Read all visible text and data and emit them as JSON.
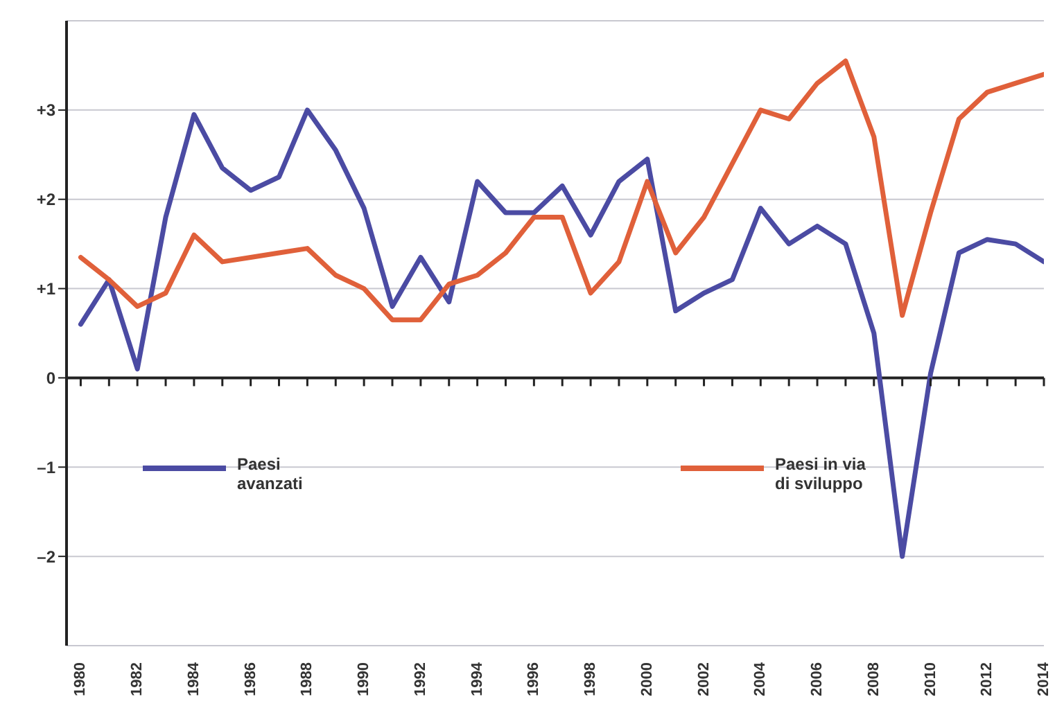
{
  "chart_data": {
    "type": "line",
    "x": [
      1980,
      1981,
      1982,
      1983,
      1984,
      1985,
      1986,
      1987,
      1988,
      1989,
      1990,
      1991,
      1992,
      1993,
      1994,
      1995,
      1996,
      1997,
      1998,
      1999,
      2000,
      2001,
      2002,
      2003,
      2004,
      2005,
      2006,
      2007,
      2008,
      2009,
      2010,
      2011,
      2012,
      2013,
      2014
    ],
    "series": [
      {
        "name": "Paesi avanzati",
        "color": "#4b4ba3",
        "values": [
          0.6,
          1.1,
          0.1,
          1.8,
          2.95,
          2.35,
          2.1,
          2.25,
          3.0,
          2.55,
          1.9,
          0.8,
          1.35,
          0.85,
          2.2,
          1.85,
          1.85,
          2.15,
          1.6,
          2.2,
          2.45,
          0.75,
          0.95,
          1.1,
          1.9,
          1.5,
          1.7,
          1.5,
          0.5,
          -2.0,
          0.05,
          1.4,
          1.55,
          1.5,
          1.3
        ]
      },
      {
        "name": "Paesi in via di sviluppo",
        "color": "#e0603a",
        "values": [
          1.35,
          1.1,
          0.8,
          0.95,
          1.6,
          1.3,
          1.35,
          1.4,
          1.45,
          1.15,
          1.0,
          0.65,
          0.65,
          1.05,
          1.15,
          1.4,
          1.8,
          1.8,
          0.95,
          1.3,
          2.2,
          1.4,
          1.8,
          2.4,
          3.0,
          2.9,
          3.3,
          3.55,
          2.7,
          0.7,
          1.85,
          2.9,
          3.2,
          3.3,
          3.4
        ]
      }
    ],
    "xlim": [
      1979.5,
      2014
    ],
    "xticks": [
      1980,
      {
        "value": 1981,
        "label": null
      },
      1982,
      {
        "value": 1983,
        "label": null
      },
      1984,
      {
        "value": 1985,
        "label": null
      },
      1986,
      {
        "value": 1987,
        "label": null
      },
      1988,
      {
        "value": 1989,
        "label": null
      },
      1990,
      {
        "value": 1991,
        "label": null
      },
      1992,
      {
        "value": 1993,
        "label": null
      },
      1994,
      {
        "value": 1995,
        "label": null
      },
      1996,
      {
        "value": 1997,
        "label": null
      },
      1998,
      {
        "value": 1999,
        "label": null
      },
      2000,
      {
        "value": 2001,
        "label": null
      },
      2002,
      {
        "value": 2003,
        "label": null
      },
      2004,
      {
        "value": 2005,
        "label": null
      },
      2006,
      {
        "value": 2007,
        "label": null
      },
      2008,
      {
        "value": 2009,
        "label": null
      },
      2010,
      {
        "value": 2011,
        "label": null
      },
      2012,
      {
        "value": 2013,
        "label": null
      },
      2014
    ],
    "ylim": [
      -3,
      4
    ],
    "yticks": [
      {
        "value": -2,
        "label": "–2"
      },
      {
        "value": -1,
        "label": "–1"
      },
      0,
      {
        "value": 1,
        "label": "+1"
      },
      {
        "value": 2,
        "label": "+2"
      },
      {
        "value": 3,
        "label": "+3"
      }
    ],
    "grid": "y",
    "legend": "bottom",
    "marker": "none",
    "line_style": "solid"
  }
}
